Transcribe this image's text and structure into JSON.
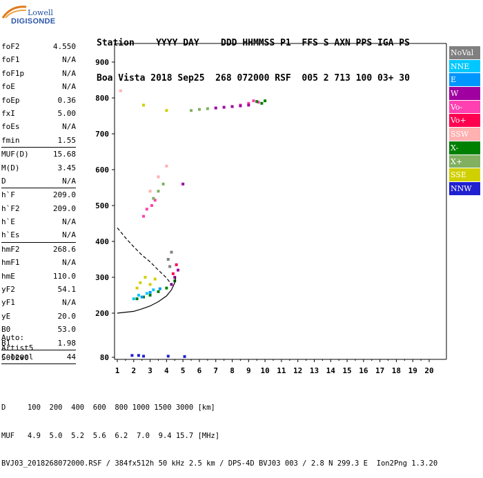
{
  "logo": {
    "line1": "Lowell",
    "line2": "DIGISONDE"
  },
  "header": {
    "line1": "Station    YYYY DAY    DDD HHMMSS P1  FFS S AXN PPS IGA PS",
    "line2": "Boa Vista 2018 Sep25  268 072000 RSF  005 2 713 100 03+ 30"
  },
  "params": [
    {
      "k": "foF2",
      "v": "4.550"
    },
    {
      "k": "foF1",
      "v": "N/A"
    },
    {
      "k": "foF1p",
      "v": "N/A"
    },
    {
      "k": "foE",
      "v": "N/A"
    },
    {
      "k": "foEp",
      "v": "0.36"
    },
    {
      "k": "fxI",
      "v": "5.00"
    },
    {
      "k": "foEs",
      "v": "N/A"
    },
    {
      "k": "fmin",
      "v": "1.55"
    },
    {
      "k": "MUF(D)",
      "v": "15.68"
    },
    {
      "k": "M(D)",
      "v": "3.45"
    },
    {
      "k": "D",
      "v": "N/A"
    },
    {
      "k": "h`F",
      "v": "209.0"
    },
    {
      "k": "h`F2",
      "v": "209.0"
    },
    {
      "k": "h`E",
      "v": "N/A"
    },
    {
      "k": "h`Es",
      "v": "N/A"
    },
    {
      "k": "hmF2",
      "v": "268.6"
    },
    {
      "k": "hmF1",
      "v": "N/A"
    },
    {
      "k": "hmE",
      "v": "110.0"
    },
    {
      "k": "yF2",
      "v": "54.1"
    },
    {
      "k": "yF1",
      "v": "N/A"
    },
    {
      "k": "yE",
      "v": "20.0"
    },
    {
      "k": "B0",
      "v": "53.0"
    },
    {
      "k": "B1",
      "v": "1.98"
    },
    {
      "k": "C-level",
      "v": "44"
    }
  ],
  "auto": {
    "l1": "Auto:",
    "l2": "Artist5",
    "l3": "500200"
  },
  "legend": [
    {
      "label": "NoVal",
      "color": "#808080"
    },
    {
      "label": "NNE",
      "color": "#00c8ff"
    },
    {
      "label": "E",
      "color": "#0096ff"
    },
    {
      "label": "W",
      "color": "#a000a0"
    },
    {
      "label": "Vo-",
      "color": "#ff40b0"
    },
    {
      "label": "Vo+",
      "color": "#ff0050"
    },
    {
      "label": "SSW",
      "color": "#ffb0b0"
    },
    {
      "label": "X-",
      "color": "#008000"
    },
    {
      "label": "X+",
      "color": "#80b060"
    },
    {
      "label": "SSE",
      "color": "#d0d000"
    },
    {
      "label": "NNW",
      "color": "#2020d0"
    }
  ],
  "footer": {
    "d_line": "D     100  200  400  600  800 1000 1500 3000 [km]",
    "muf_line": "MUF   4.9  5.0  5.2  5.6  6.2  7.0  9.4 15.7 [MHz]",
    "file_line": "BVJ03_2018268072000.RSF / 384fx512h 50 kHz 2.5 km / DPS-4D BVJ03 003 / 2.8 N 299.3 E  Ion2Png 1.3.20"
  },
  "chart_data": {
    "type": "scatter",
    "x_ticks": [
      1,
      2,
      3,
      4,
      5,
      6,
      7,
      8,
      9,
      10,
      11,
      12,
      13,
      14,
      15,
      16,
      17,
      18,
      19,
      20
    ],
    "y_ticks": [
      80,
      200,
      300,
      400,
      500,
      600,
      700,
      800,
      900
    ],
    "xlim": [
      1,
      20
    ],
    "ylim": [
      80,
      900
    ],
    "grid": false,
    "legend_position": "right",
    "series": [
      {
        "name": "Vo-",
        "points": [
          [
            9.0,
            785
          ],
          [
            9.3,
            792
          ],
          [
            9.6,
            788
          ],
          [
            8.5,
            780
          ],
          [
            2.6,
            470
          ],
          [
            2.8,
            490
          ],
          [
            3.1,
            500
          ],
          [
            3.3,
            515
          ]
        ]
      },
      {
        "name": "W",
        "points": [
          [
            7.0,
            772
          ],
          [
            7.5,
            774
          ],
          [
            8.0,
            776
          ],
          [
            8.5,
            778
          ],
          [
            9.0,
            780
          ],
          [
            4.5,
            300
          ],
          [
            4.7,
            320
          ],
          [
            4.3,
            280
          ],
          [
            5.0,
            560
          ]
        ]
      },
      {
        "name": "X-",
        "points": [
          [
            9.5,
            790
          ],
          [
            9.8,
            785
          ],
          [
            10.0,
            792
          ],
          [
            2.2,
            240
          ],
          [
            2.6,
            245
          ],
          [
            3.0,
            250
          ],
          [
            3.5,
            260
          ],
          [
            4.0,
            270
          ],
          [
            4.5,
            290
          ]
        ]
      },
      {
        "name": "X+",
        "points": [
          [
            5.5,
            765
          ],
          [
            6.0,
            768
          ],
          [
            6.5,
            770
          ],
          [
            3.2,
            520
          ],
          [
            3.5,
            540
          ],
          [
            3.8,
            560
          ]
        ]
      },
      {
        "name": "SSE",
        "points": [
          [
            2.2,
            270
          ],
          [
            2.4,
            285
          ],
          [
            2.7,
            300
          ],
          [
            3.0,
            280
          ],
          [
            3.3,
            295
          ],
          [
            2.6,
            780
          ],
          [
            4.0,
            765
          ]
        ]
      },
      {
        "name": "NNE",
        "points": [
          [
            2.0,
            240
          ],
          [
            2.3,
            250
          ],
          [
            2.8,
            255
          ],
          [
            3.2,
            265
          ]
        ]
      },
      {
        "name": "E",
        "points": [
          [
            2.5,
            245
          ],
          [
            3.0,
            258
          ],
          [
            3.6,
            268
          ]
        ]
      },
      {
        "name": "SSW",
        "points": [
          [
            1.2,
            820
          ],
          [
            3.0,
            540
          ],
          [
            3.5,
            580
          ],
          [
            4.0,
            610
          ]
        ]
      },
      {
        "name": "Vo+",
        "points": [
          [
            4.4,
            310
          ],
          [
            4.6,
            335
          ]
        ]
      },
      {
        "name": "NNW",
        "points": [
          [
            1.9,
            85
          ],
          [
            2.3,
            85
          ],
          [
            2.6,
            83
          ],
          [
            4.1,
            83
          ],
          [
            5.1,
            82
          ]
        ]
      },
      {
        "name": "NoVal",
        "points": [
          [
            4.2,
            330
          ],
          [
            4.1,
            350
          ],
          [
            4.3,
            370
          ]
        ]
      }
    ],
    "virtual_height_trace": [
      [
        1.0,
        200
      ],
      [
        2.0,
        205
      ],
      [
        2.5,
        212
      ],
      [
        3.0,
        220
      ],
      [
        3.5,
        232
      ],
      [
        4.0,
        248
      ],
      [
        4.3,
        265
      ],
      [
        4.5,
        285
      ],
      [
        4.55,
        300
      ]
    ],
    "profile_trace": [
      [
        1.0,
        438
      ],
      [
        1.5,
        410
      ],
      [
        2.0,
        385
      ],
      [
        2.5,
        362
      ],
      [
        3.0,
        343
      ],
      [
        3.5,
        320
      ],
      [
        4.0,
        298
      ],
      [
        4.3,
        280
      ]
    ]
  }
}
